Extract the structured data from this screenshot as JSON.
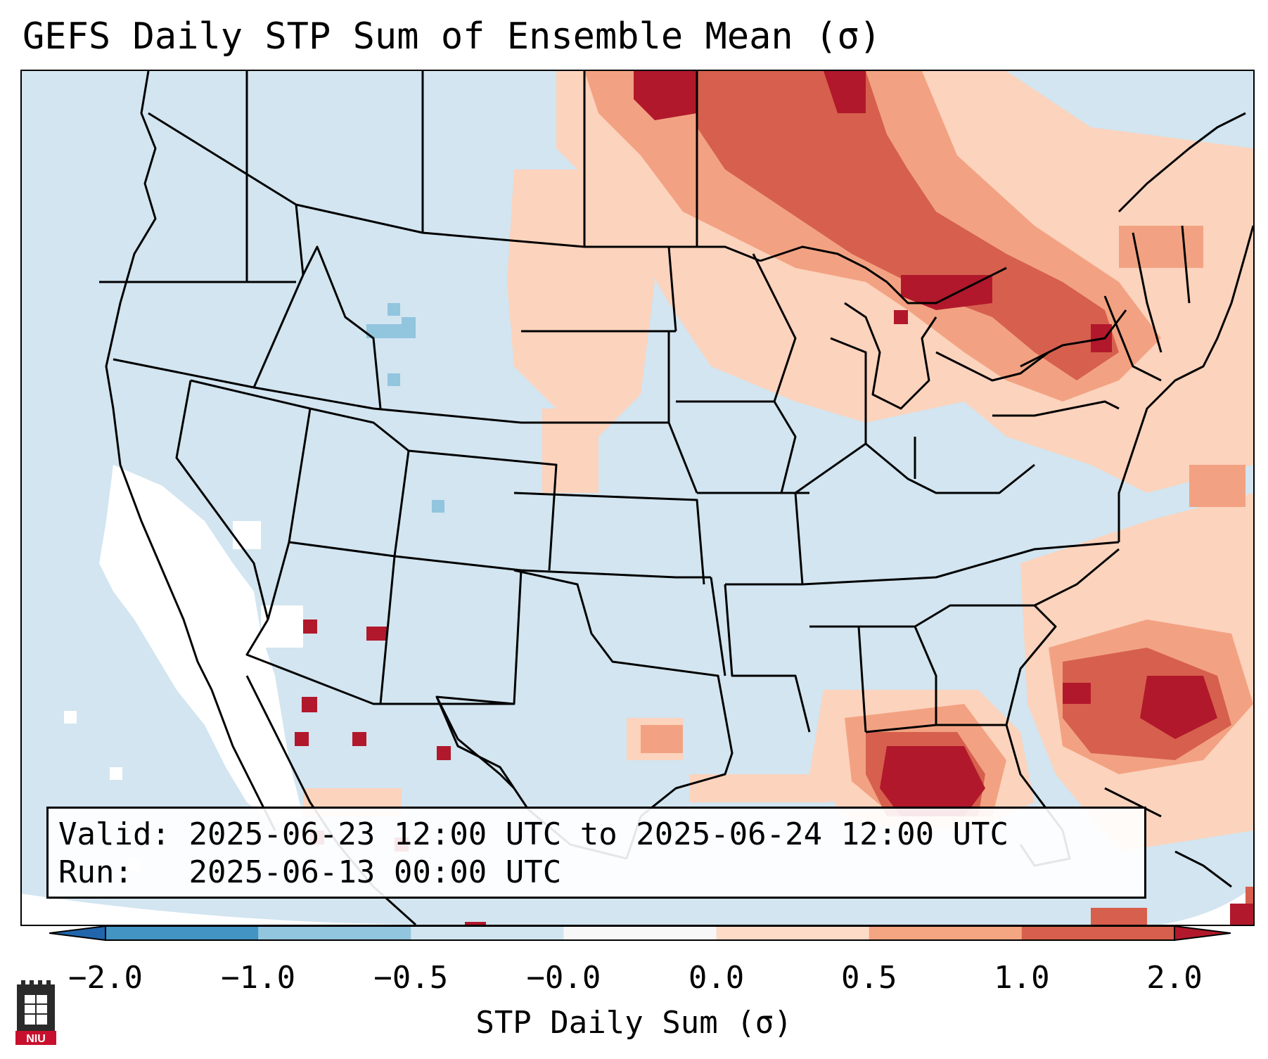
{
  "title": "GEFS Daily STP Sum of Ensemble Mean (σ)",
  "map": {
    "region": "Continental United States",
    "colors": {
      "ocean_land_base": "#d2e5f0",
      "neutral": "#ffffff",
      "light_positive": "#fcd3bd",
      "mid_positive": "#f2a282",
      "strong_positive": "#d6604d",
      "very_strong_positive": "#b2182b",
      "light_negative": "#92c5de",
      "mid_negative": "#4393c3"
    }
  },
  "info": {
    "valid_label": "Valid:",
    "valid_value": "2025-06-23 12:00 UTC to 2025-06-24 12:00 UTC",
    "run_label": "Run:",
    "run_value": "2025-06-13 00:00 UTC"
  },
  "colorbar": {
    "label": "STP Daily Sum (σ)",
    "ticks": [
      "−2.0",
      "−1.0",
      "−0.5",
      "−0.0",
      "0.0",
      "0.5",
      "1.0",
      "2.0"
    ],
    "segment_colors": [
      "#4393c3",
      "#92c5de",
      "#d1e5f0",
      "#f7f7f7",
      "#fddbc7",
      "#f4a582",
      "#d6604d"
    ],
    "extend_low_color": "#2166ac",
    "extend_high_color": "#b2182b"
  },
  "logo_text": "NIU"
}
